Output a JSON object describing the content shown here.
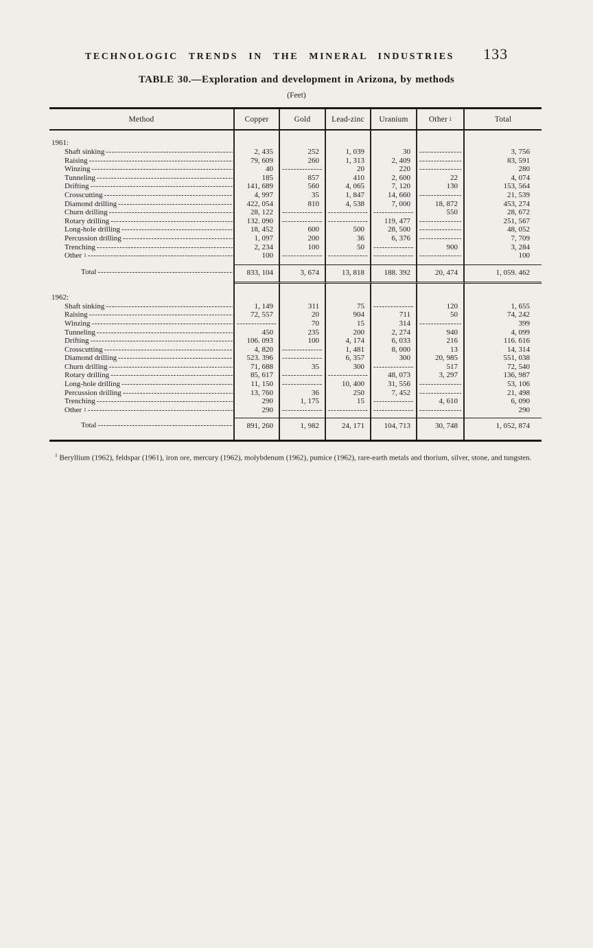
{
  "header": {
    "running_head": "TECHNOLOGIC TRENDS IN THE MINERAL INDUSTRIES",
    "page_number": "133"
  },
  "table": {
    "title": "TABLE 30.—Exploration and development in Arizona, by methods",
    "units": "(Feet)",
    "columns": [
      {
        "label": "Method"
      },
      {
        "label": "Copper"
      },
      {
        "label": "Gold"
      },
      {
        "label": "Lead-zinc"
      },
      {
        "label": "Uranium"
      },
      {
        "label": "Other",
        "sup": "1"
      },
      {
        "label": "Total"
      }
    ],
    "sections": [
      {
        "year_label": "1961:",
        "rows": [
          {
            "method": "Shaft sinking",
            "values": [
              "2, 435",
              "252",
              "1, 039",
              "30",
              "",
              "3, 756"
            ]
          },
          {
            "method": "Raising",
            "values": [
              "79, 609",
              "260",
              "1, 313",
              "2, 409",
              "",
              "83, 591"
            ]
          },
          {
            "method": "Winzing",
            "values": [
              "40",
              "",
              "20",
              "220",
              "",
              "280"
            ]
          },
          {
            "method": "Tunneling",
            "values": [
              "185",
              "857",
              "410",
              "2, 600",
              "22",
              "4, 074"
            ]
          },
          {
            "method": "Drifting",
            "values": [
              "141, 689",
              "560",
              "4, 065",
              "7, 120",
              "130",
              "153, 564"
            ]
          },
          {
            "method": "Crosscutting",
            "values": [
              "4, 997",
              "35",
              "1, 847",
              "14, 660",
              "",
              "21, 539"
            ]
          },
          {
            "method": "Diamond drilling",
            "values": [
              "422, 054",
              "810",
              "4, 538",
              "7, 000",
              "18, 872",
              "453, 274"
            ]
          },
          {
            "method": "Churn drilling",
            "values": [
              "28, 122",
              "",
              "",
              "",
              "550",
              "28, 672"
            ]
          },
          {
            "method": "Rotary drilling",
            "values": [
              "132. 090",
              "",
              "",
              "119, 477",
              "",
              "251, 567"
            ]
          },
          {
            "method": "Long-hole drilling",
            "values": [
              "18, 452",
              "600",
              "500",
              "28, 500",
              "",
              "48, 052"
            ]
          },
          {
            "method": "Percussion drilling",
            "values": [
              "1, 097",
              "200",
              "36",
              "6, 376",
              "",
              "7, 709"
            ]
          },
          {
            "method": "Trenching",
            "values": [
              "2, 234",
              "100",
              "50",
              "",
              "900",
              "3, 284"
            ]
          },
          {
            "method": "Other",
            "sup": "1",
            "values": [
              "100",
              "",
              "",
              "",
              "",
              "100"
            ]
          }
        ],
        "total": {
          "label": "Total",
          "values": [
            "833, 104",
            "3, 674",
            "13, 818",
            "188. 392",
            "20, 474",
            "1, 059. 462"
          ]
        }
      },
      {
        "year_label": "1962:",
        "rows": [
          {
            "method": "Shaft sinking",
            "values": [
              "1, 149",
              "311",
              "75",
              "",
              "120",
              "1, 655"
            ]
          },
          {
            "method": "Raising",
            "values": [
              "72, 557",
              "20",
              "904",
              "711",
              "50",
              "74, 242"
            ]
          },
          {
            "method": "Winzing",
            "values": [
              "",
              "70",
              "15",
              "314",
              "",
              "399"
            ]
          },
          {
            "method": "Tunneling",
            "values": [
              "450",
              "235",
              "200",
              "2, 274",
              "940",
              "4, 099"
            ]
          },
          {
            "method": "Drifting",
            "values": [
              "106. 093",
              "100",
              "4, 174",
              "6, 033",
              "216",
              "116. 616"
            ]
          },
          {
            "method": "Crosscutting",
            "values": [
              "4, 820",
              "",
              "1, 481",
              "8, 000",
              "13",
              "14, 314"
            ]
          },
          {
            "method": "Diamond drilling",
            "values": [
              "523. 396",
              "",
              "6, 357",
              "300",
              "20, 985",
              "551, 038"
            ]
          },
          {
            "method": "Churn drilling",
            "values": [
              "71, 688",
              "35",
              "300",
              "",
              "517",
              "72, 540"
            ]
          },
          {
            "method": "Rotary drilling",
            "values": [
              "85, 617",
              "",
              "",
              "48, 073",
              "3, 297",
              "136, 987"
            ]
          },
          {
            "method": "Long-hole drilling",
            "values": [
              "11, 150",
              "",
              "10, 400",
              "31, 556",
              "",
              "53, 106"
            ]
          },
          {
            "method": "Percussion drilling",
            "values": [
              "13, 760",
              "36",
              "250",
              "7, 452",
              "",
              "21, 498"
            ]
          },
          {
            "method": "Trenching",
            "values": [
              "290",
              "1, 175",
              "15",
              "",
              "4, 610",
              "6, 090"
            ]
          },
          {
            "method": "Other",
            "sup": "1",
            "values": [
              "290",
              "",
              "",
              "",
              "",
              "290"
            ]
          }
        ],
        "total": {
          "label": "Total",
          "values": [
            "891, 260",
            "1, 982",
            "24, 171",
            "104, 713",
            "30, 748",
            "1, 052, 874"
          ]
        }
      }
    ],
    "footnote": {
      "sup": "1",
      "text": "Beryllium (1962), feldspar (1961), iron ore, mercury (1962), molybdenum (1962), pumice (1962), rare-earth metals and thorium, silver, stone, and tungsten."
    }
  }
}
